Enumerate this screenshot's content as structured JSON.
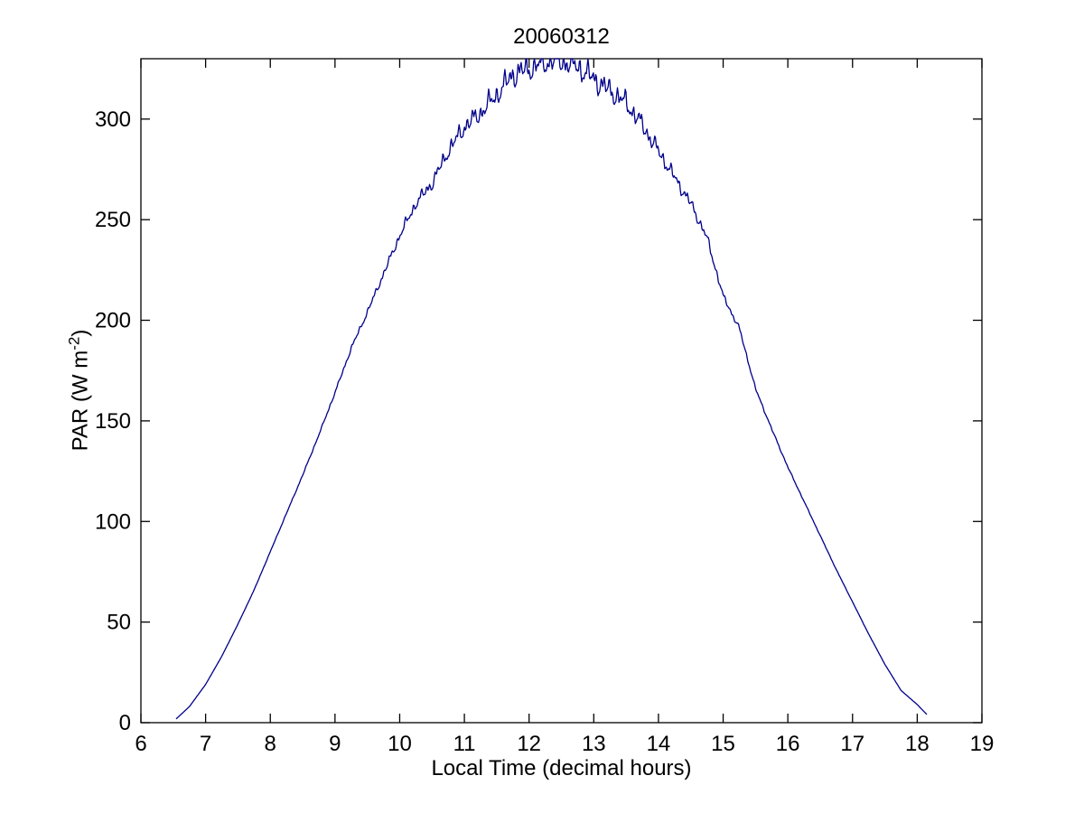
{
  "chart_data": {
    "type": "line",
    "title": "20060312",
    "xlabel": "Local Time (decimal hours)",
    "ylabel": "PAR (W m⁻²)",
    "ylabel_parts": {
      "base": "PAR (W m",
      "sup": "-2",
      "close": ")"
    },
    "xlim": [
      6,
      19
    ],
    "ylim": [
      0,
      330
    ],
    "xticks": [
      6,
      7,
      8,
      9,
      10,
      11,
      12,
      13,
      14,
      15,
      16,
      17,
      18,
      19
    ],
    "yticks": [
      0,
      50,
      100,
      150,
      200,
      250,
      300
    ],
    "grid": false,
    "legend_position": "none",
    "box": true,
    "line_color": "#00008B",
    "axis_color": "#000000",
    "background": "#FFFFFF",
    "series": [
      {
        "name": "PAR",
        "x": [
          6.55,
          6.75,
          7.0,
          7.25,
          7.5,
          7.75,
          8.0,
          8.25,
          8.5,
          8.75,
          9.0,
          9.25,
          9.5,
          9.75,
          10.0,
          10.25,
          10.5,
          10.75,
          11.0,
          11.25,
          11.5,
          11.75,
          12.0,
          12.25,
          12.4,
          12.5,
          12.75,
          13.0,
          13.25,
          13.5,
          13.75,
          14.0,
          14.25,
          14.5,
          14.75,
          15.0,
          15.25,
          15.5,
          15.75,
          16.0,
          16.25,
          16.5,
          16.75,
          17.0,
          17.25,
          17.5,
          17.75,
          18.0,
          18.15
        ],
        "y": [
          2,
          8,
          19,
          33,
          49,
          66,
          85,
          104,
          123,
          143,
          164,
          186,
          204,
          223,
          242,
          258,
          268,
          284,
          296,
          303,
          312,
          322,
          325,
          328,
          330,
          329,
          326,
          320,
          314,
          308,
          297,
          284,
          271,
          258,
          241,
          212,
          196,
          166,
          146,
          127,
          110,
          93,
          76,
          60,
          44,
          29,
          16,
          9,
          4
        ]
      }
    ],
    "noise": {
      "max_amplitude": 5,
      "comment_visible_character": "small high-frequency flicker, strongest near midday peak"
    }
  }
}
